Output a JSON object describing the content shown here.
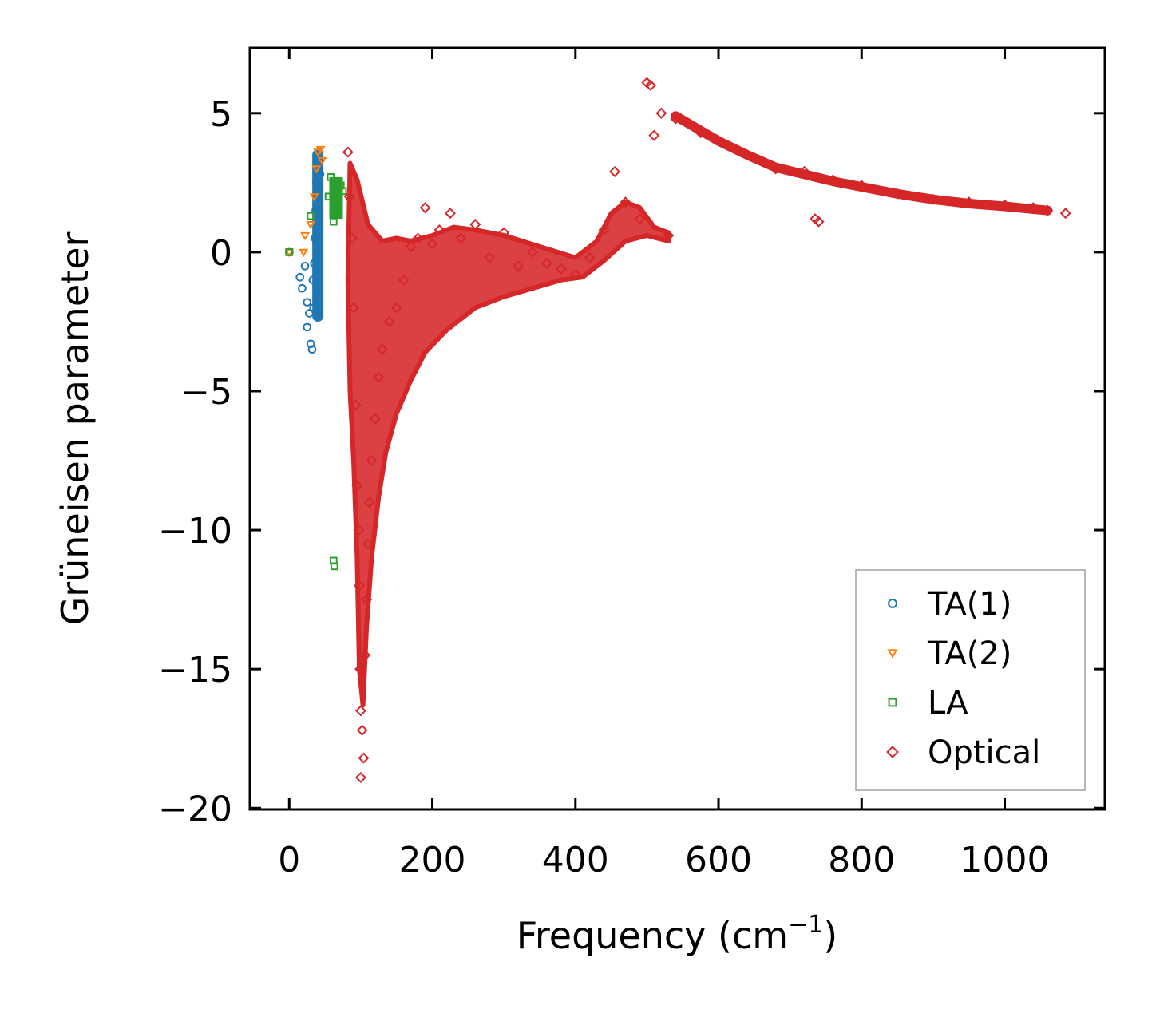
{
  "chart_data": {
    "type": "scatter",
    "title": "",
    "xlabel": "Frequency (cm",
    "xlabel_sup": "−1",
    "xlabel_close": ")",
    "ylabel": "Grüneisen parameter",
    "xlim": [
      -55,
      1140
    ],
    "ylim": [
      -20.05,
      7.35
    ],
    "xticks": [
      0,
      200,
      400,
      600,
      800,
      1000
    ],
    "xtick_labels": [
      "0",
      "200",
      "400",
      "600",
      "800",
      "1000"
    ],
    "yticks": [
      5,
      0,
      -5,
      -10,
      -15,
      -20
    ],
    "ytick_labels": [
      "5",
      "0",
      "−5",
      "−10",
      "−15",
      "−20"
    ],
    "grid": false,
    "legend_position": "bottom-right",
    "series": [
      {
        "name": "TA(1)",
        "marker": "circle",
        "color": "#1f77b4",
        "points": [
          [
            0,
            0
          ],
          [
            15,
            -0.9
          ],
          [
            18,
            -1.3
          ],
          [
            22,
            -0.5
          ],
          [
            25,
            -1.8
          ],
          [
            28,
            -2.2
          ],
          [
            25,
            -2.7
          ],
          [
            30,
            -3.3
          ],
          [
            32,
            -3.5
          ],
          [
            33,
            -1.0
          ],
          [
            34,
            -2.0
          ],
          [
            35,
            -0.4
          ],
          [
            36,
            0.5
          ],
          [
            37,
            1.5
          ],
          [
            38,
            2.5
          ],
          [
            39,
            2.0
          ],
          [
            40,
            3.0
          ],
          [
            41,
            3.4
          ],
          [
            42,
            3.6
          ],
          [
            43,
            2.8
          ]
        ]
      },
      {
        "name": "TA(2)",
        "marker": "triangle-down",
        "color": "#ff7f0e",
        "points": [
          [
            0,
            0
          ],
          [
            20,
            0
          ],
          [
            22,
            0.6
          ],
          [
            30,
            1.0
          ],
          [
            35,
            2.0
          ],
          [
            38,
            3.0
          ],
          [
            40,
            3.6
          ],
          [
            44,
            3.7
          ],
          [
            46,
            3.3
          ]
        ]
      },
      {
        "name": "LA",
        "marker": "square",
        "color": "#2ca02c",
        "points": [
          [
            0,
            0
          ],
          [
            30,
            1.3
          ],
          [
            55,
            2.0
          ],
          [
            58,
            2.7
          ],
          [
            62,
            1.1
          ],
          [
            64,
            1.5
          ],
          [
            68,
            2.3
          ],
          [
            72,
            2.4
          ],
          [
            62,
            -11.1
          ],
          [
            63,
            -11.3
          ],
          [
            66,
            2.0
          ],
          [
            75,
            2.2
          ]
        ]
      },
      {
        "name": "Optical",
        "marker": "diamond",
        "color": "#d62728",
        "points": [
          [
            82,
            3.6
          ],
          [
            84,
            2.0
          ],
          [
            88,
            0.5
          ],
          [
            90,
            -2.0
          ],
          [
            93,
            -5.5
          ],
          [
            95,
            -8.4
          ],
          [
            97,
            -10.0
          ],
          [
            98,
            -12.0
          ],
          [
            99,
            -15.0
          ],
          [
            100,
            -16.5
          ],
          [
            100,
            -18.9
          ],
          [
            102,
            -17.2
          ],
          [
            104,
            -18.2
          ],
          [
            106,
            -14.5
          ],
          [
            108,
            -12.5
          ],
          [
            110,
            -10.5
          ],
          [
            112,
            -9.0
          ],
          [
            115,
            -7.5
          ],
          [
            120,
            -6.0
          ],
          [
            125,
            -4.5
          ],
          [
            130,
            -3.5
          ],
          [
            140,
            -2.5
          ],
          [
            150,
            -2.0
          ],
          [
            160,
            -1.0
          ],
          [
            170,
            0.2
          ],
          [
            180,
            0.5
          ],
          [
            190,
            1.6
          ],
          [
            200,
            0.3
          ],
          [
            210,
            0.8
          ],
          [
            225,
            1.4
          ],
          [
            240,
            0.5
          ],
          [
            260,
            1.0
          ],
          [
            280,
            -0.2
          ],
          [
            300,
            0.7
          ],
          [
            320,
            -0.5
          ],
          [
            340,
            0.0
          ],
          [
            360,
            -0.4
          ],
          [
            380,
            -0.6
          ],
          [
            400,
            -0.8
          ],
          [
            420,
            -0.2
          ],
          [
            440,
            0.8
          ],
          [
            455,
            2.9
          ],
          [
            470,
            1.8
          ],
          [
            490,
            1.2
          ],
          [
            500,
            6.1
          ],
          [
            505,
            6.0
          ],
          [
            510,
            4.2
          ],
          [
            520,
            5.0
          ],
          [
            530,
            0.6
          ],
          [
            540,
            4.8
          ],
          [
            560,
            4.6
          ],
          [
            575,
            4.3
          ],
          [
            600,
            4.0
          ],
          [
            640,
            3.5
          ],
          [
            680,
            3.0
          ],
          [
            720,
            2.9
          ],
          [
            760,
            2.6
          ],
          [
            800,
            2.4
          ],
          [
            850,
            2.1
          ],
          [
            900,
            1.9
          ],
          [
            950,
            1.8
          ],
          [
            1000,
            1.7
          ],
          [
            1040,
            1.6
          ],
          [
            1060,
            1.5
          ],
          [
            1085,
            1.4
          ],
          [
            740,
            1.1
          ],
          [
            735,
            1.2
          ]
        ]
      }
    ]
  }
}
